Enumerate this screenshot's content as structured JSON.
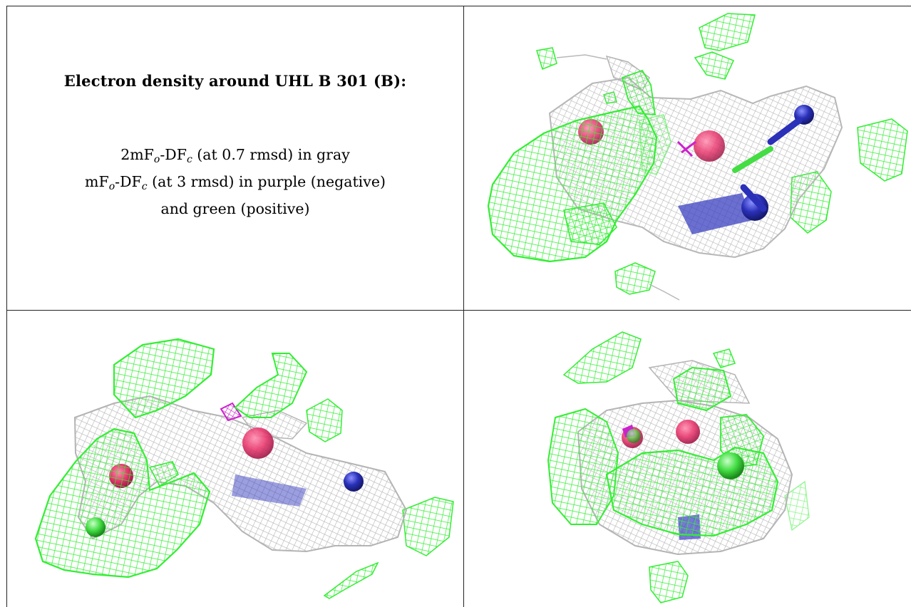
{
  "caption": {
    "title": "Electron density around UHL B 301 (B):",
    "line1": {
      "prefix": "2mF",
      "sub_o": "o",
      "mid": "-DF",
      "sub_c": "c",
      "suffix": " (at 0.7 rmsd) in gray"
    },
    "line2": {
      "prefix": "mF",
      "sub_o": "o",
      "mid": "-DF",
      "sub_c": "c",
      "suffix": " (at 3 rmsd) in purple (negative)"
    },
    "line3": "and green (positive)"
  },
  "colors": {
    "positive_mesh": "#33ee33",
    "gray_mesh": "#b4b4b4",
    "negative_mesh": "#cc22cc",
    "oxygen": "#e8386e",
    "nitrogen": "#2a30b8",
    "grid_line": "#222222"
  },
  "panels": [
    {
      "name": "density-view-top-right",
      "content": "image"
    },
    {
      "name": "density-view-bottom-left",
      "content": "image"
    },
    {
      "name": "density-view-bottom-right",
      "content": "image"
    }
  ]
}
